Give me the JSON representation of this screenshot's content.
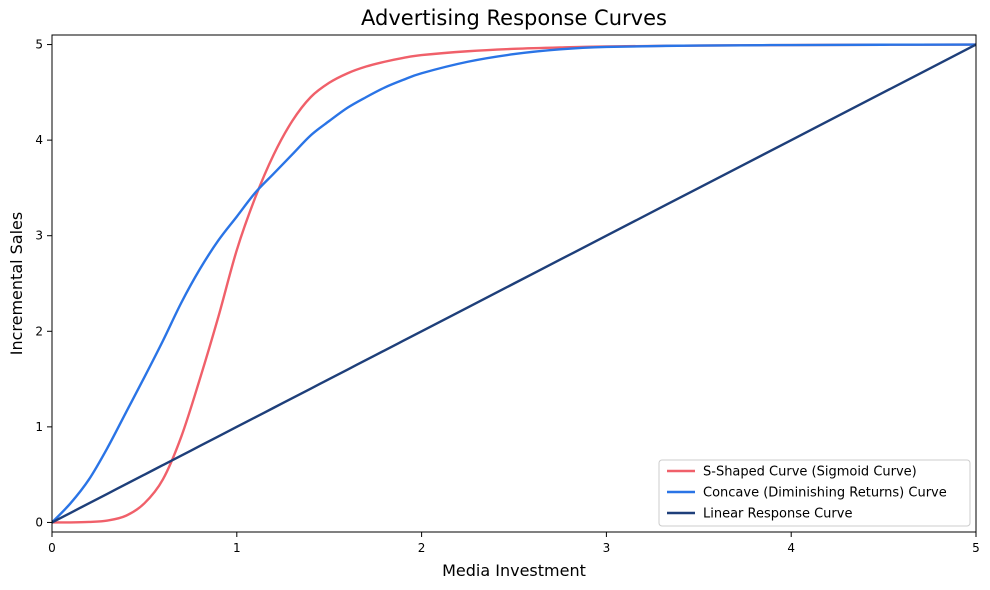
{
  "chart_data": {
    "type": "line",
    "title": "Advertising Response Curves",
    "xlabel": "Media Investment",
    "ylabel": "Incremental Sales",
    "xlim": [
      0,
      5
    ],
    "ylim": [
      -0.1,
      5.1
    ],
    "xticks": [
      "0",
      "1",
      "2",
      "3",
      "4",
      "5"
    ],
    "yticks": [
      "0",
      "1",
      "2",
      "3",
      "4",
      "5"
    ],
    "grid": false,
    "legend_position": "lower-right",
    "x": [
      0,
      0.1,
      0.2,
      0.3,
      0.4,
      0.5,
      0.6,
      0.7,
      0.8,
      0.9,
      1.0,
      1.1,
      1.2,
      1.3,
      1.4,
      1.5,
      1.6,
      1.7,
      1.8,
      1.9,
      2.0,
      2.25,
      2.5,
      2.75,
      3.0,
      3.5,
      4.0,
      4.5,
      5.0
    ],
    "series": [
      {
        "name": "S-Shaped Curve (Sigmoid Curve)",
        "color": "#f0606a",
        "values": [
          0.0,
          0.0,
          0.005,
          0.02,
          0.07,
          0.2,
          0.45,
          0.9,
          1.5,
          2.15,
          2.85,
          3.4,
          3.85,
          4.2,
          4.45,
          4.6,
          4.7,
          4.77,
          4.82,
          4.86,
          4.89,
          4.93,
          4.955,
          4.97,
          4.98,
          4.99,
          4.995,
          4.998,
          5.0
        ]
      },
      {
        "name": "Concave (Diminishing Returns) Curve",
        "color": "#2a74e6",
        "values": [
          0.0,
          0.2,
          0.45,
          0.78,
          1.15,
          1.52,
          1.9,
          2.3,
          2.65,
          2.95,
          3.2,
          3.45,
          3.65,
          3.85,
          4.05,
          4.2,
          4.34,
          4.45,
          4.55,
          4.63,
          4.7,
          4.82,
          4.9,
          4.95,
          4.975,
          4.99,
          4.995,
          4.998,
          5.0
        ]
      },
      {
        "name": "Linear Response Curve",
        "color": "#1e3f7a",
        "values": [
          0.0,
          0.1,
          0.2,
          0.3,
          0.4,
          0.5,
          0.6,
          0.7,
          0.8,
          0.9,
          1.0,
          1.1,
          1.2,
          1.3,
          1.4,
          1.5,
          1.6,
          1.7,
          1.8,
          1.9,
          2.0,
          2.25,
          2.5,
          2.75,
          3.0,
          3.5,
          4.0,
          4.5,
          5.0
        ]
      }
    ]
  }
}
